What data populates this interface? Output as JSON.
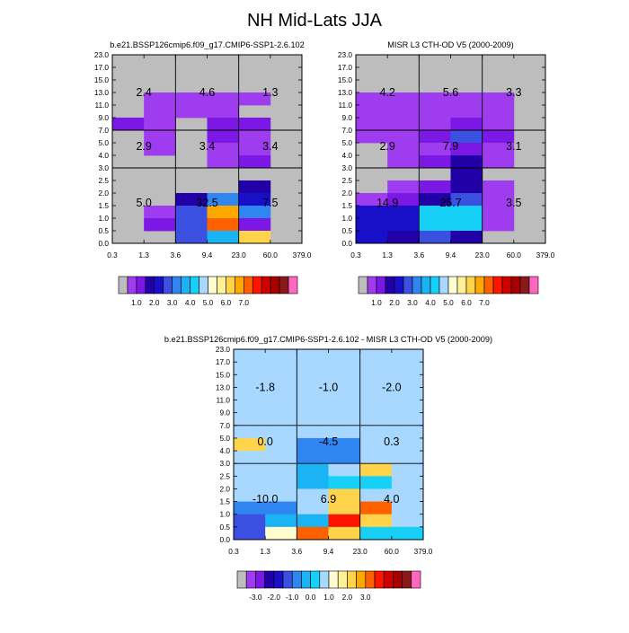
{
  "figure": {
    "title": "NH Mid-Lats JJA"
  },
  "colors": {
    "background_missing": "#bdbdbd",
    "grid_line": "#000000"
  },
  "chart_data": [
    {
      "type": "heatmap",
      "title": "b.e21.BSSP126cmip6.f09_g17.CMIP6-SSP1-2.6.102",
      "x_ticks": [
        "0.3",
        "1.3",
        "3.6",
        "9.4",
        "23.0",
        "60.0",
        "379.0"
      ],
      "y_ticks": [
        "0.0",
        "0.5",
        "1.0",
        "1.5",
        "2.0",
        "2.5",
        "3.0",
        "4.0",
        "5.0",
        "7.0",
        "9.0",
        "11.0",
        "13.0",
        "15.0",
        "17.0",
        "23.0"
      ],
      "column_group_dividers_after_bins": [
        2,
        4
      ],
      "row_group_dividers_at_y_bins": [
        6,
        9
      ],
      "cell_bin_values": [
        [
          0,
          0,
          0,
          0,
          0,
          0
        ],
        [
          0,
          0,
          0,
          0,
          0,
          0
        ],
        [
          0,
          0,
          0,
          0,
          0,
          0
        ],
        [
          0,
          1,
          1,
          1,
          1,
          0
        ],
        [
          0,
          1,
          1,
          1,
          0,
          0
        ],
        [
          2,
          1,
          0,
          2,
          2,
          0
        ],
        [
          0,
          1,
          0,
          2,
          1,
          0
        ],
        [
          0,
          1,
          0,
          1,
          1,
          0
        ],
        [
          0,
          0,
          0,
          1,
          2,
          0
        ],
        [
          0,
          0,
          0,
          0,
          0,
          0
        ],
        [
          0,
          0,
          0,
          0,
          3,
          0
        ],
        [
          0,
          0,
          3,
          6,
          4,
          0
        ],
        [
          0,
          1,
          5,
          13,
          6,
          0
        ],
        [
          0,
          2,
          5,
          14,
          2,
          0
        ],
        [
          0,
          0,
          5,
          7,
          12,
          0
        ]
      ],
      "group_totals": [
        [
          "2.4",
          "4.6",
          "1.3"
        ],
        [
          "2.9",
          "3.4",
          "3.4"
        ],
        [
          "5.0",
          "32.5",
          "7.5"
        ]
      ],
      "colorbar": {
        "colors": [
          "#bdbdbd",
          "#a03cf0",
          "#7b18e6",
          "#2200a8",
          "#1810c8",
          "#3b50e0",
          "#2f86f0",
          "#1ab4f5",
          "#16d0f8",
          "#a8d8ff",
          "#fffcd0",
          "#fff09a",
          "#ffd34a",
          "#ffa800",
          "#ff6000",
          "#ff1400",
          "#d00000",
          "#a80000",
          "#8a1a1a",
          "#ff68c0"
        ],
        "tick_labels": [
          "1.0",
          "2.0",
          "3.0",
          "4.0",
          "5.0",
          "6.0",
          "7.0"
        ],
        "tick_after_box": [
          2,
          4,
          6,
          8,
          10,
          12,
          14
        ]
      }
    },
    {
      "type": "heatmap",
      "title": "MISR L3 CTH-OD V5 (2000-2009)",
      "x_ticks": [
        "0.3",
        "1.3",
        "3.6",
        "9.4",
        "23.0",
        "60.0",
        "379.0"
      ],
      "y_ticks": [
        "0.0",
        "0.5",
        "1.0",
        "1.5",
        "2.0",
        "2.5",
        "3.0",
        "4.0",
        "5.0",
        "7.0",
        "9.0",
        "11.0",
        "13.0",
        "15.0",
        "17.0",
        "23.0"
      ],
      "column_group_dividers_after_bins": [
        2,
        4
      ],
      "row_group_dividers_at_y_bins": [
        6,
        9
      ],
      "cell_bin_values": [
        [
          0,
          0,
          0,
          0,
          0,
          0
        ],
        [
          0,
          0,
          0,
          0,
          0,
          0
        ],
        [
          0,
          0,
          0,
          0,
          0,
          0
        ],
        [
          1,
          1,
          1,
          1,
          1,
          0
        ],
        [
          1,
          1,
          1,
          1,
          1,
          0
        ],
        [
          1,
          1,
          1,
          2,
          1,
          0
        ],
        [
          1,
          1,
          2,
          5,
          2,
          0
        ],
        [
          0,
          1,
          1,
          2,
          1,
          0
        ],
        [
          0,
          1,
          2,
          3,
          1,
          0
        ],
        [
          0,
          0,
          0,
          3,
          0,
          0
        ],
        [
          0,
          1,
          2,
          3,
          1,
          0
        ],
        [
          1,
          2,
          3,
          5,
          1,
          0
        ],
        [
          4,
          4,
          8,
          8,
          1,
          0
        ],
        [
          4,
          4,
          8,
          8,
          1,
          0
        ],
        [
          4,
          3,
          5,
          3,
          0,
          0
        ]
      ],
      "group_totals": [
        [
          "4.2",
          "5.6",
          "3.3"
        ],
        [
          "2.9",
          "7.9",
          "3.1"
        ],
        [
          "14.9",
          "25.7",
          "3.5"
        ]
      ],
      "colorbar": {
        "colors": [
          "#bdbdbd",
          "#a03cf0",
          "#7b18e6",
          "#2200a8",
          "#1810c8",
          "#3b50e0",
          "#2f86f0",
          "#1ab4f5",
          "#16d0f8",
          "#a8d8ff",
          "#fffcd0",
          "#fff09a",
          "#ffd34a",
          "#ffa800",
          "#ff6000",
          "#ff1400",
          "#d00000",
          "#a80000",
          "#8a1a1a",
          "#ff68c0"
        ],
        "tick_labels": [
          "1.0",
          "2.0",
          "3.0",
          "4.0",
          "5.0",
          "6.0",
          "7.0"
        ],
        "tick_after_box": [
          2,
          4,
          6,
          8,
          10,
          12,
          14
        ]
      }
    },
    {
      "type": "heatmap",
      "title": "b.e21.BSSP126cmip6.f09_g17.CMIP6-SSP1-2.6.102 - MISR L3 CTH-OD V5 (2000-2009)",
      "x_ticks": [
        "0.3",
        "1.3",
        "3.6",
        "9.4",
        "23.0",
        "60.0",
        "379.0"
      ],
      "y_ticks": [
        "0.0",
        "0.5",
        "1.0",
        "1.5",
        "2.0",
        "2.5",
        "3.0",
        "4.0",
        "5.0",
        "7.0",
        "9.0",
        "11.0",
        "13.0",
        "15.0",
        "17.0",
        "23.0"
      ],
      "column_group_dividers_after_bins": [
        2,
        4
      ],
      "row_group_dividers_at_y_bins": [
        6,
        9
      ],
      "cell_values_diff": [
        [
          0,
          0,
          0,
          0,
          0,
          0
        ],
        [
          0,
          0,
          0,
          0,
          0,
          0
        ],
        [
          0,
          0,
          0,
          0,
          0,
          0
        ],
        [
          0,
          0,
          0,
          0,
          0,
          0
        ],
        [
          0,
          0.2,
          0.2,
          0,
          0,
          0
        ],
        [
          0,
          0,
          0,
          0,
          0,
          0
        ],
        [
          0,
          0,
          0,
          0,
          0,
          0
        ],
        [
          1.5,
          0,
          -1.5,
          -1.5,
          0.2,
          0
        ],
        [
          0,
          0,
          -1.5,
          -1.5,
          0.2,
          0.2
        ],
        [
          0,
          0,
          -1,
          0,
          1.5,
          0.2
        ],
        [
          0,
          0,
          -1,
          -0.3,
          -0.3,
          0
        ],
        [
          0,
          0,
          0.2,
          1.5,
          0.2,
          0
        ],
        [
          -1.5,
          -1.5,
          0.2,
          1.5,
          2.5,
          0.2
        ],
        [
          -2,
          -1,
          -1,
          3.2,
          1.5,
          0.2
        ],
        [
          -2,
          0.6,
          2.6,
          1.5,
          -0.3,
          -0.3
        ]
      ],
      "group_totals": [
        [
          "-1.8",
          "-1.0",
          "-2.0"
        ],
        [
          "0.0",
          "-4.5",
          "0.3"
        ],
        [
          "-10.0",
          "6.9",
          "4.0"
        ]
      ],
      "colorbar": {
        "colors": [
          "#bdbdbd",
          "#a03cf0",
          "#7b18e6",
          "#2200a8",
          "#1810c8",
          "#3b50e0",
          "#2f86f0",
          "#1ab4f5",
          "#16d0f8",
          "#a8d8ff",
          "#fffcd0",
          "#fff09a",
          "#ffd34a",
          "#ffa800",
          "#ff6000",
          "#ff1400",
          "#d00000",
          "#a80000",
          "#8a1a1a",
          "#ff68c0"
        ],
        "tick_labels": [
          "-3.0",
          "-2.0",
          "-1.0",
          "0.0",
          "1.0",
          "2.0",
          "3.0"
        ],
        "tick_after_box": [
          2,
          4,
          6,
          8,
          10,
          12,
          14
        ]
      }
    }
  ]
}
